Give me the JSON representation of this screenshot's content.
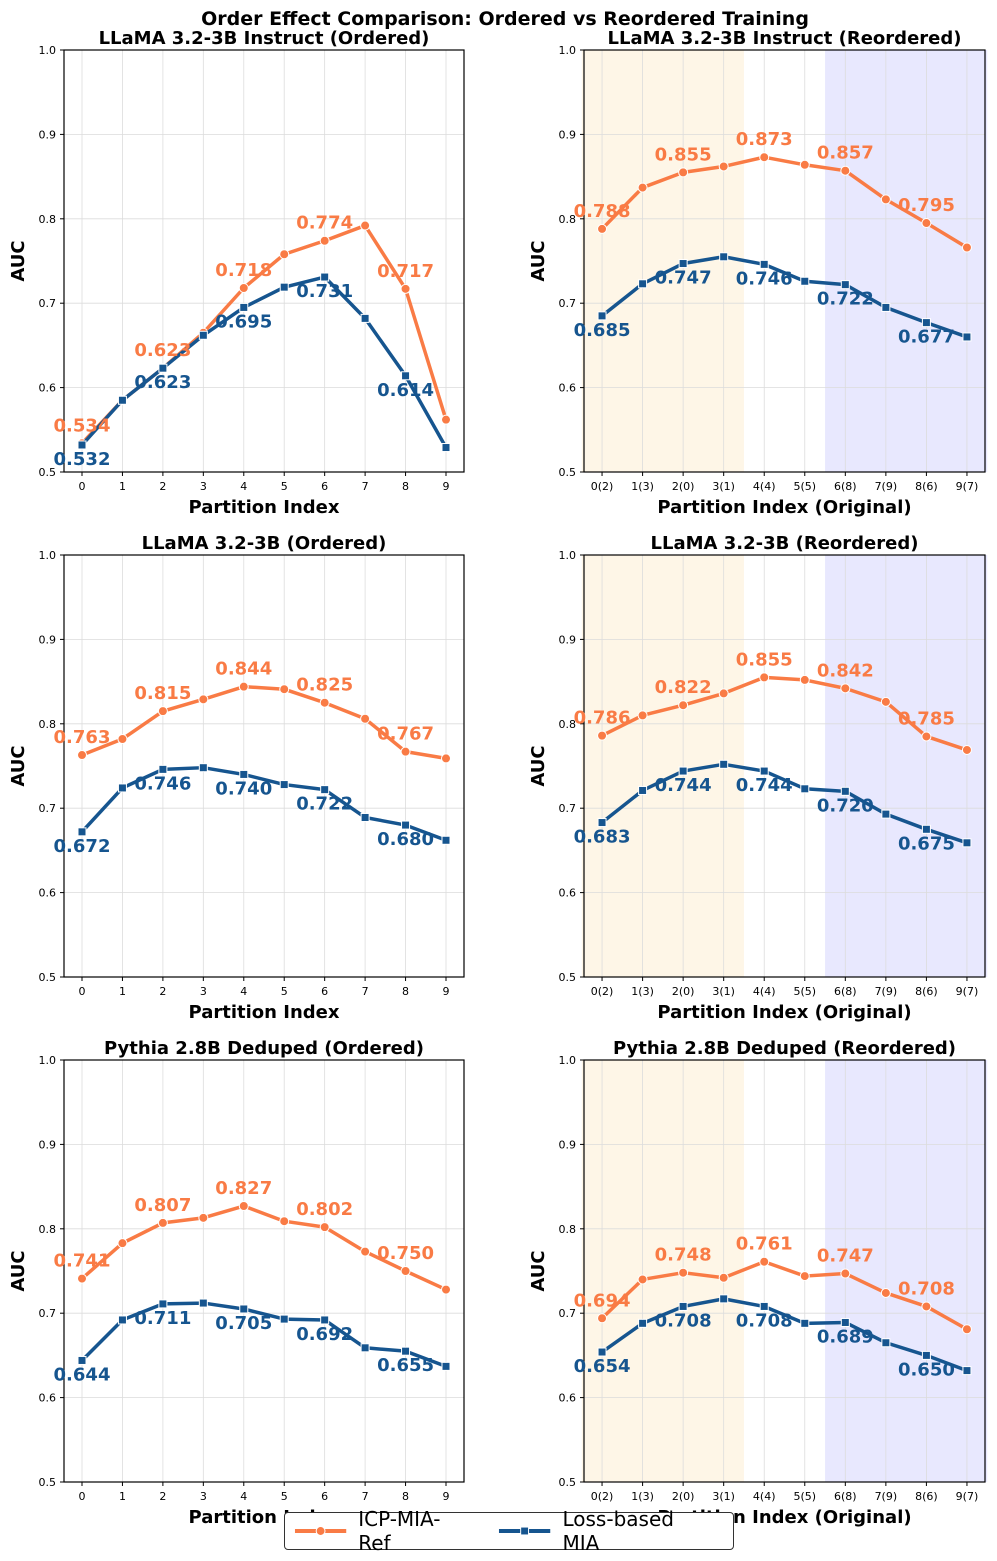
{
  "figure_title": "Order Effect Comparison: Ordered vs Reordered Training",
  "colors": {
    "icp": "#F97B45",
    "loss": "#16558F",
    "early_shade": "#FEF6E7",
    "late_shade": "#E8E8FE"
  },
  "legend": [
    {
      "name": "ICP-MIA-Ref",
      "series": "icp"
    },
    {
      "name": "Loss-based MIA",
      "series": "loss"
    }
  ],
  "chart_data": [
    {
      "type": "line",
      "title": "LLaMA 3.2-3B Instruct (Ordered)",
      "xlabel": "Partition Index",
      "ylabel": "AUC",
      "categories": [
        "0",
        "1",
        "2",
        "3",
        "4",
        "5",
        "6",
        "7",
        "8",
        "9"
      ],
      "ylim": [
        0.5,
        1.0
      ],
      "yticks": [
        "0.5",
        "0.6",
        "0.7",
        "0.8",
        "0.9",
        "1.0"
      ],
      "series": [
        {
          "key": "icp",
          "name": "ICP-MIA-Ref",
          "values": [
            0.534,
            0.585,
            0.623,
            0.665,
            0.718,
            0.758,
            0.774,
            0.792,
            0.717,
            0.562
          ]
        },
        {
          "key": "loss",
          "name": "Loss-based MIA",
          "values": [
            0.532,
            0.585,
            0.623,
            0.662,
            0.695,
            0.719,
            0.731,
            0.682,
            0.614,
            0.529
          ]
        }
      ],
      "labels": [
        {
          "series": "icp",
          "i": 0,
          "text": "0.534"
        },
        {
          "series": "icp",
          "i": 2,
          "text": "0.623"
        },
        {
          "series": "icp",
          "i": 4,
          "text": "0.718"
        },
        {
          "series": "icp",
          "i": 6,
          "text": "0.774"
        },
        {
          "series": "icp",
          "i": 8,
          "text": "0.717"
        },
        {
          "series": "loss",
          "i": 0,
          "text": "0.532"
        },
        {
          "series": "loss",
          "i": 2,
          "text": "0.623"
        },
        {
          "series": "loss",
          "i": 4,
          "text": "0.695"
        },
        {
          "series": "loss",
          "i": 6,
          "text": "0.731"
        },
        {
          "series": "loss",
          "i": 8,
          "text": "0.614"
        }
      ]
    },
    {
      "type": "line",
      "title": "LLaMA 3.2-3B Instruct (Reordered)",
      "xlabel": "Partition Index (Original)",
      "ylabel": "AUC",
      "categories": [
        "0(2)",
        "1(3)",
        "2(0)",
        "3(1)",
        "4(4)",
        "5(5)",
        "6(8)",
        "7(9)",
        "8(6)",
        "9(7)"
      ],
      "ylim": [
        0.5,
        1.0
      ],
      "yticks": [
        "0.5",
        "0.6",
        "0.7",
        "0.8",
        "0.9",
        "1.0"
      ],
      "shaded": [
        {
          "from": 0,
          "to": 3,
          "color": "early"
        },
        {
          "from": 6,
          "to": 9,
          "color": "late"
        }
      ],
      "series": [
        {
          "key": "icp",
          "name": "ICP-MIA-Ref",
          "values": [
            0.788,
            0.837,
            0.855,
            0.862,
            0.873,
            0.864,
            0.857,
            0.823,
            0.795,
            0.766
          ]
        },
        {
          "key": "loss",
          "name": "Loss-based MIA",
          "values": [
            0.685,
            0.723,
            0.747,
            0.755,
            0.746,
            0.726,
            0.722,
            0.695,
            0.677,
            0.66
          ]
        }
      ],
      "labels": [
        {
          "series": "icp",
          "i": 0,
          "text": "0.788"
        },
        {
          "series": "icp",
          "i": 2,
          "text": "0.855"
        },
        {
          "series": "icp",
          "i": 4,
          "text": "0.873"
        },
        {
          "series": "icp",
          "i": 6,
          "text": "0.857"
        },
        {
          "series": "icp",
          "i": 8,
          "text": "0.795"
        },
        {
          "series": "loss",
          "i": 0,
          "text": "0.685"
        },
        {
          "series": "loss",
          "i": 2,
          "text": "0.747"
        },
        {
          "series": "loss",
          "i": 4,
          "text": "0.746"
        },
        {
          "series": "loss",
          "i": 6,
          "text": "0.722"
        },
        {
          "series": "loss",
          "i": 8,
          "text": "0.677"
        }
      ]
    },
    {
      "type": "line",
      "title": "LLaMA 3.2-3B (Ordered)",
      "xlabel": "Partition Index",
      "ylabel": "AUC",
      "categories": [
        "0",
        "1",
        "2",
        "3",
        "4",
        "5",
        "6",
        "7",
        "8",
        "9"
      ],
      "ylim": [
        0.5,
        1.0
      ],
      "yticks": [
        "0.5",
        "0.6",
        "0.7",
        "0.8",
        "0.9",
        "1.0"
      ],
      "series": [
        {
          "key": "icp",
          "name": "ICP-MIA-Ref",
          "values": [
            0.763,
            0.782,
            0.815,
            0.829,
            0.844,
            0.841,
            0.825,
            0.806,
            0.767,
            0.759
          ]
        },
        {
          "key": "loss",
          "name": "Loss-based MIA",
          "values": [
            0.672,
            0.724,
            0.746,
            0.748,
            0.74,
            0.728,
            0.722,
            0.689,
            0.68,
            0.662
          ]
        }
      ],
      "labels": [
        {
          "series": "icp",
          "i": 0,
          "text": "0.763"
        },
        {
          "series": "icp",
          "i": 2,
          "text": "0.815"
        },
        {
          "series": "icp",
          "i": 4,
          "text": "0.844"
        },
        {
          "series": "icp",
          "i": 6,
          "text": "0.825"
        },
        {
          "series": "icp",
          "i": 8,
          "text": "0.767"
        },
        {
          "series": "loss",
          "i": 0,
          "text": "0.672"
        },
        {
          "series": "loss",
          "i": 2,
          "text": "0.746"
        },
        {
          "series": "loss",
          "i": 4,
          "text": "0.740"
        },
        {
          "series": "loss",
          "i": 6,
          "text": "0.722"
        },
        {
          "series": "loss",
          "i": 8,
          "text": "0.680"
        }
      ]
    },
    {
      "type": "line",
      "title": "LLaMA 3.2-3B (Reordered)",
      "xlabel": "Partition Index (Original)",
      "ylabel": "AUC",
      "categories": [
        "0(2)",
        "1(3)",
        "2(0)",
        "3(1)",
        "4(4)",
        "5(5)",
        "6(8)",
        "7(9)",
        "8(6)",
        "9(7)"
      ],
      "ylim": [
        0.5,
        1.0
      ],
      "yticks": [
        "0.5",
        "0.6",
        "0.7",
        "0.8",
        "0.9",
        "1.0"
      ],
      "shaded": [
        {
          "from": 0,
          "to": 3,
          "color": "early"
        },
        {
          "from": 6,
          "to": 9,
          "color": "late"
        }
      ],
      "series": [
        {
          "key": "icp",
          "name": "ICP-MIA-Ref",
          "values": [
            0.786,
            0.81,
            0.822,
            0.836,
            0.855,
            0.852,
            0.842,
            0.826,
            0.785,
            0.769
          ]
        },
        {
          "key": "loss",
          "name": "Loss-based MIA",
          "values": [
            0.683,
            0.721,
            0.744,
            0.752,
            0.744,
            0.723,
            0.72,
            0.693,
            0.675,
            0.659
          ]
        }
      ],
      "labels": [
        {
          "series": "icp",
          "i": 0,
          "text": "0.786"
        },
        {
          "series": "icp",
          "i": 2,
          "text": "0.822"
        },
        {
          "series": "icp",
          "i": 4,
          "text": "0.855"
        },
        {
          "series": "icp",
          "i": 6,
          "text": "0.842"
        },
        {
          "series": "icp",
          "i": 8,
          "text": "0.785"
        },
        {
          "series": "loss",
          "i": 0,
          "text": "0.683"
        },
        {
          "series": "loss",
          "i": 2,
          "text": "0.744"
        },
        {
          "series": "loss",
          "i": 4,
          "text": "0.744"
        },
        {
          "series": "loss",
          "i": 6,
          "text": "0.720"
        },
        {
          "series": "loss",
          "i": 8,
          "text": "0.675"
        }
      ]
    },
    {
      "type": "line",
      "title": "Pythia 2.8B Deduped (Ordered)",
      "xlabel": "Partition Index",
      "ylabel": "AUC",
      "categories": [
        "0",
        "1",
        "2",
        "3",
        "4",
        "5",
        "6",
        "7",
        "8",
        "9"
      ],
      "ylim": [
        0.5,
        1.0
      ],
      "yticks": [
        "0.5",
        "0.6",
        "0.7",
        "0.8",
        "0.9",
        "1.0"
      ],
      "series": [
        {
          "key": "icp",
          "name": "ICP-MIA-Ref",
          "values": [
            0.741,
            0.783,
            0.807,
            0.813,
            0.827,
            0.809,
            0.802,
            0.773,
            0.75,
            0.728
          ]
        },
        {
          "key": "loss",
          "name": "Loss-based MIA",
          "values": [
            0.644,
            0.692,
            0.711,
            0.712,
            0.705,
            0.693,
            0.692,
            0.659,
            0.655,
            0.637
          ]
        }
      ],
      "labels": [
        {
          "series": "icp",
          "i": 0,
          "text": "0.741"
        },
        {
          "series": "icp",
          "i": 2,
          "text": "0.807"
        },
        {
          "series": "icp",
          "i": 4,
          "text": "0.827"
        },
        {
          "series": "icp",
          "i": 6,
          "text": "0.802"
        },
        {
          "series": "icp",
          "i": 8,
          "text": "0.750"
        },
        {
          "series": "loss",
          "i": 0,
          "text": "0.644"
        },
        {
          "series": "loss",
          "i": 2,
          "text": "0.711"
        },
        {
          "series": "loss",
          "i": 4,
          "text": "0.705"
        },
        {
          "series": "loss",
          "i": 6,
          "text": "0.692"
        },
        {
          "series": "loss",
          "i": 8,
          "text": "0.655"
        }
      ]
    },
    {
      "type": "line",
      "title": "Pythia 2.8B Deduped (Reordered)",
      "xlabel": "Partition Index (Original)",
      "ylabel": "AUC",
      "categories": [
        "0(2)",
        "1(3)",
        "2(0)",
        "3(1)",
        "4(4)",
        "5(5)",
        "6(8)",
        "7(9)",
        "8(6)",
        "9(7)"
      ],
      "ylim": [
        0.5,
        1.0
      ],
      "yticks": [
        "0.5",
        "0.6",
        "0.7",
        "0.8",
        "0.9",
        "1.0"
      ],
      "shaded": [
        {
          "from": 0,
          "to": 3,
          "color": "early"
        },
        {
          "from": 6,
          "to": 9,
          "color": "late"
        }
      ],
      "series": [
        {
          "key": "icp",
          "name": "ICP-MIA-Ref",
          "values": [
            0.694,
            0.74,
            0.748,
            0.742,
            0.761,
            0.744,
            0.747,
            0.724,
            0.708,
            0.681
          ]
        },
        {
          "key": "loss",
          "name": "Loss-based MIA",
          "values": [
            0.654,
            0.688,
            0.708,
            0.717,
            0.708,
            0.688,
            0.689,
            0.665,
            0.65,
            0.632
          ]
        }
      ],
      "labels": [
        {
          "series": "icp",
          "i": 0,
          "text": "0.694"
        },
        {
          "series": "icp",
          "i": 2,
          "text": "0.748"
        },
        {
          "series": "icp",
          "i": 4,
          "text": "0.761"
        },
        {
          "series": "icp",
          "i": 6,
          "text": "0.747"
        },
        {
          "series": "icp",
          "i": 8,
          "text": "0.708"
        },
        {
          "series": "loss",
          "i": 0,
          "text": "0.654"
        },
        {
          "series": "loss",
          "i": 2,
          "text": "0.708"
        },
        {
          "series": "loss",
          "i": 4,
          "text": "0.708"
        },
        {
          "series": "loss",
          "i": 6,
          "text": "0.689"
        },
        {
          "series": "loss",
          "i": 8,
          "text": "0.650"
        }
      ]
    }
  ]
}
